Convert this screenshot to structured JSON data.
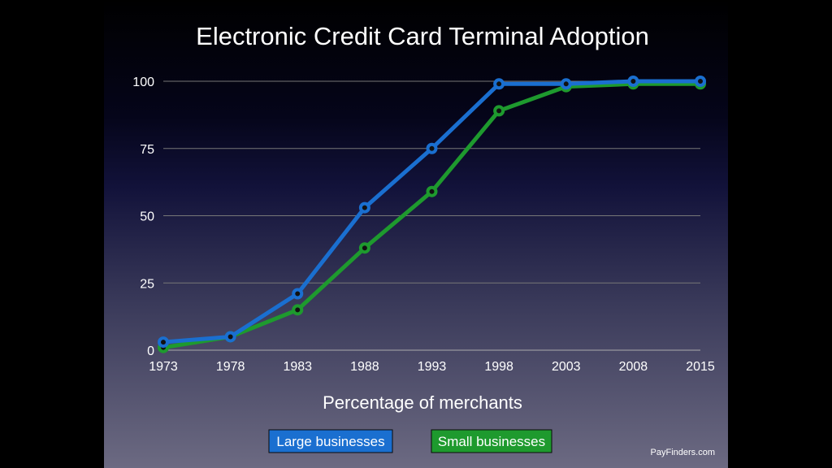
{
  "chart_data": {
    "type": "line",
    "title": "Electronic Credit Card Terminal Adoption",
    "xlabel": "Percentage of merchants",
    "ylabel": "",
    "categories": [
      "1973",
      "1978",
      "1983",
      "1988",
      "1993",
      "1998",
      "2003",
      "2008",
      "2015"
    ],
    "yticks": [
      "0",
      "25",
      "50",
      "75",
      "100"
    ],
    "ylim": [
      0,
      100
    ],
    "grid": true,
    "legend_position": "bottom",
    "series": [
      {
        "name": "Large businesses",
        "color": "#1a6fd0",
        "values": [
          3,
          5,
          21,
          53,
          75,
          99,
          99,
          100,
          100
        ]
      },
      {
        "name": "Small businesses",
        "color": "#1e9a2e",
        "values": [
          1,
          5,
          15,
          38,
          59,
          89,
          98,
          99,
          99
        ]
      }
    ]
  },
  "credit": "PayFinders.com"
}
